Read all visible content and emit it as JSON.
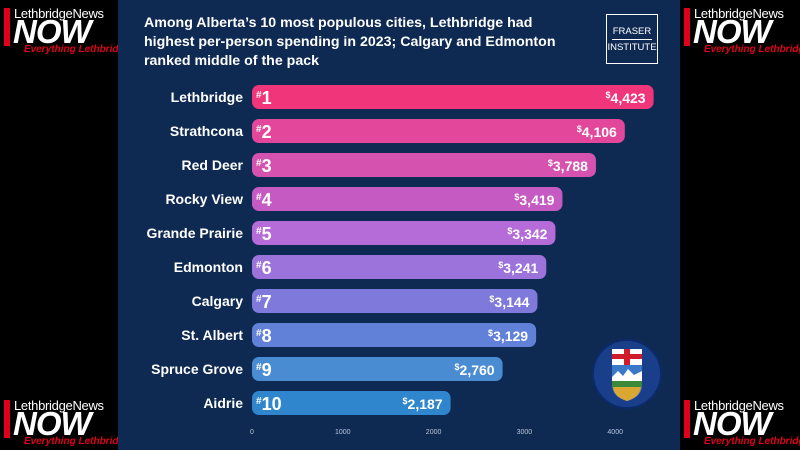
{
  "brand": {
    "site": "LethbridgeNews",
    "word": "NOW",
    "tagline": "Everything Lethbridge!",
    "accent": "#e0001b"
  },
  "fraser_logo": {
    "line1": "FRASER",
    "line2": "INSTITUTE"
  },
  "flag_icon": "alberta-coat-of-arms",
  "chart_data": {
    "type": "bar",
    "orientation": "horizontal",
    "title": "Among Alberta’s 10 most populous cities, Lethbridge had highest per-person spending in 2023; Calgary and Edmonton ranked middle of the pack",
    "categories": [
      "Lethbridge",
      "Strathcona",
      "Red Deer",
      "Rocky View",
      "Grande Prairie",
      "Edmonton",
      "Calgary",
      "St. Albert",
      "Spruce Grove",
      "Aidrie"
    ],
    "ranks": [
      "1",
      "2",
      "3",
      "4",
      "5",
      "6",
      "7",
      "8",
      "9",
      "10"
    ],
    "rank_prefix": "#",
    "value_prefix": "$",
    "values": [
      4423,
      4106,
      3788,
      3419,
      3342,
      3241,
      3144,
      3129,
      2760,
      2187
    ],
    "value_labels": [
      "4,423",
      "4,106",
      "3,788",
      "3,419",
      "3,342",
      "3,241",
      "3,144",
      "3,129",
      "2,760",
      "2,187"
    ],
    "xticks": [
      "0",
      "1000",
      "2000",
      "3000",
      "4000"
    ],
    "xlim": [
      0,
      4450
    ],
    "colors": [
      "#f0357a",
      "#e2479b",
      "#d553ae",
      "#c55ac3",
      "#b56bd8",
      "#9c73da",
      "#7f79dc",
      "#6180d8",
      "#4a8cd2",
      "#2f86cc"
    ],
    "grid": false,
    "legend": "none"
  }
}
